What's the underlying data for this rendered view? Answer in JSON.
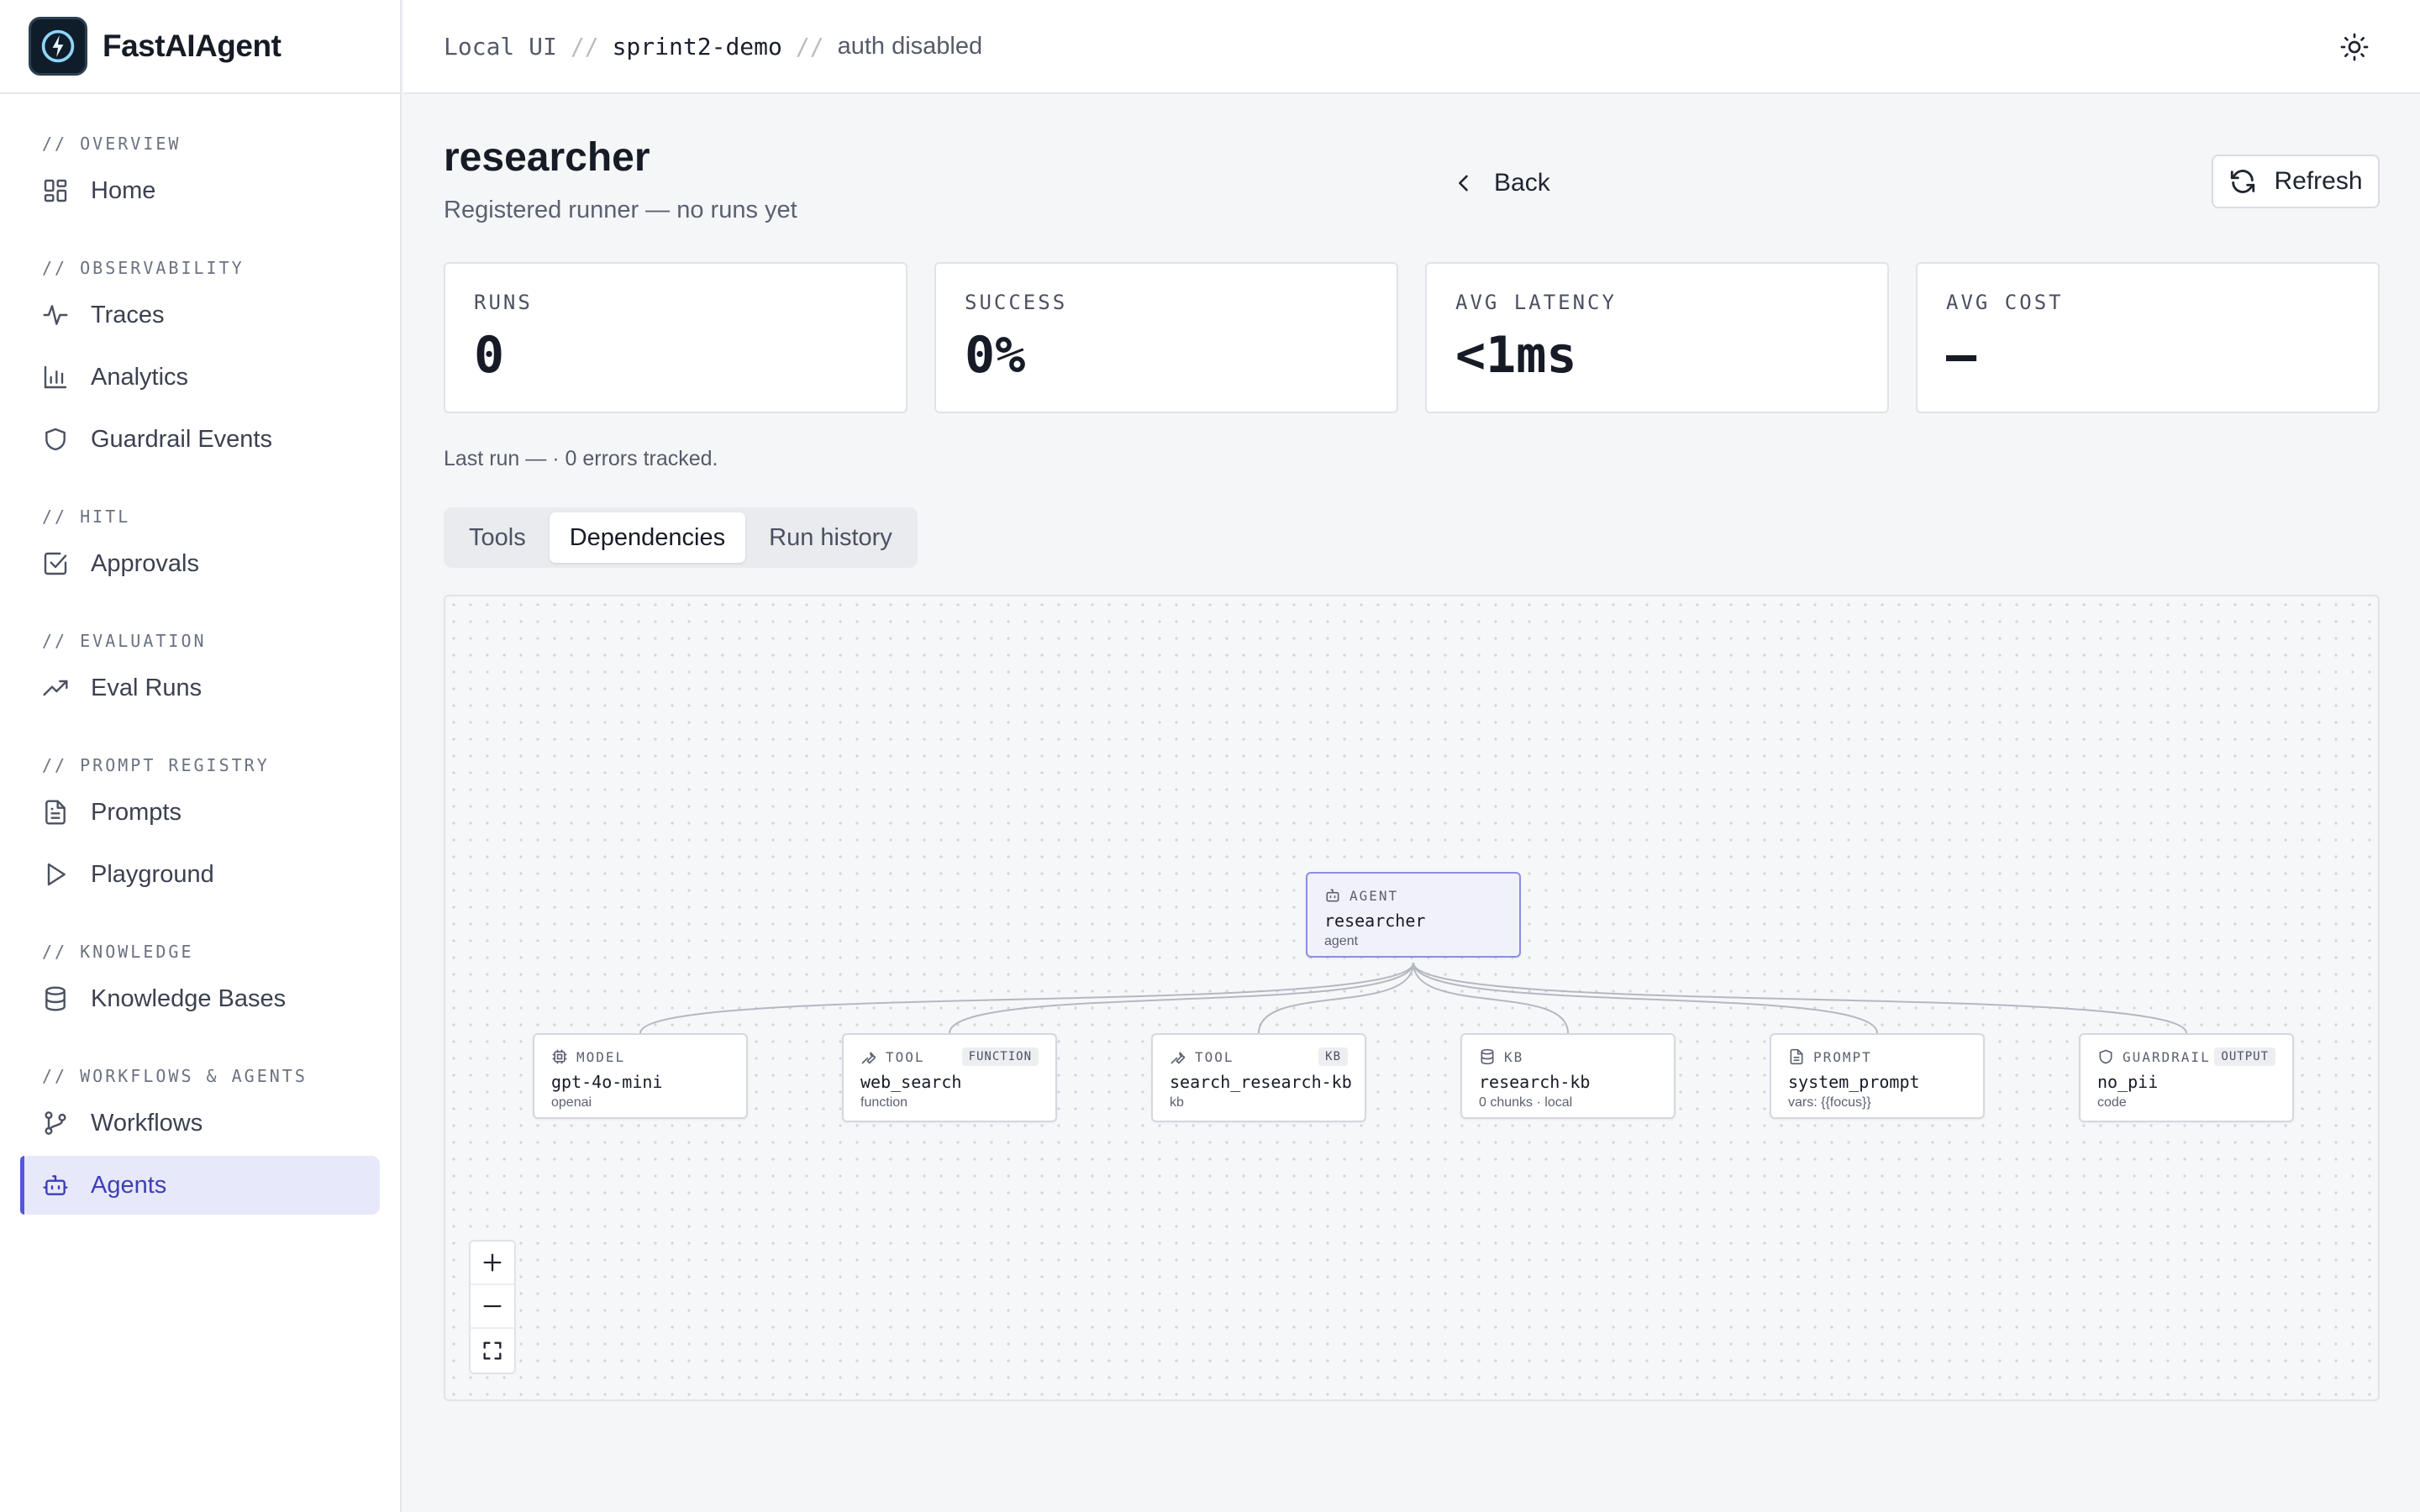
{
  "brand": {
    "name": "FastAIAgent"
  },
  "breadcrumb": {
    "root": "Local UI",
    "project": "sprint2-demo",
    "auth": "auth disabled",
    "sep": "//"
  },
  "sidebar": {
    "sections": [
      {
        "title": "// OVERVIEW",
        "items": [
          {
            "label": "Home",
            "icon": "grid-icon"
          }
        ]
      },
      {
        "title": "// OBSERVABILITY",
        "items": [
          {
            "label": "Traces",
            "icon": "activity-icon"
          },
          {
            "label": "Analytics",
            "icon": "bar-chart-icon"
          },
          {
            "label": "Guardrail Events",
            "icon": "shield-icon"
          }
        ]
      },
      {
        "title": "// HITL",
        "items": [
          {
            "label": "Approvals",
            "icon": "check-square-icon"
          }
        ]
      },
      {
        "title": "// EVALUATION",
        "items": [
          {
            "label": "Eval Runs",
            "icon": "trending-up-icon"
          }
        ]
      },
      {
        "title": "// PROMPT REGISTRY",
        "items": [
          {
            "label": "Prompts",
            "icon": "file-text-icon"
          },
          {
            "label": "Playground",
            "icon": "play-icon"
          }
        ]
      },
      {
        "title": "// KNOWLEDGE",
        "items": [
          {
            "label": "Knowledge Bases",
            "icon": "database-icon"
          }
        ]
      },
      {
        "title": "// WORKFLOWS & AGENTS",
        "items": [
          {
            "label": "Workflows",
            "icon": "git-branch-icon"
          },
          {
            "label": "Agents",
            "icon": "bot-icon",
            "active": true
          }
        ]
      }
    ]
  },
  "page": {
    "title": "researcher",
    "subtitle": "Registered runner — no runs yet",
    "back_label": "Back",
    "refresh_label": "Refresh",
    "last_run": "Last run — · 0 errors tracked."
  },
  "stats": [
    {
      "label": "RUNS",
      "value": "0"
    },
    {
      "label": "SUCCESS",
      "value": "0%"
    },
    {
      "label": "AVG LATENCY",
      "value": "<1ms"
    },
    {
      "label": "AVG COST",
      "value": "—"
    }
  ],
  "tabs": [
    {
      "label": "Tools",
      "active": false
    },
    {
      "label": "Dependencies",
      "active": true
    },
    {
      "label": "Run history",
      "active": false
    }
  ],
  "graph": {
    "root": {
      "kind": "AGENT",
      "name": "researcher",
      "sub": "agent",
      "icon": "bot-icon"
    },
    "children": [
      {
        "kind": "MODEL",
        "name": "gpt-4o-mini",
        "sub": "openai",
        "badge": "",
        "icon": "cpu-icon"
      },
      {
        "kind": "TOOL",
        "name": "web_search",
        "sub": "function",
        "badge": "FUNCTION",
        "icon": "wrench-icon"
      },
      {
        "kind": "TOOL",
        "name": "search_research-kb",
        "sub": "kb",
        "badge": "KB",
        "icon": "wrench-icon"
      },
      {
        "kind": "KB",
        "name": "research-kb",
        "sub": "0 chunks · local",
        "badge": "",
        "icon": "database-icon"
      },
      {
        "kind": "PROMPT",
        "name": "system_prompt",
        "sub": "vars: {{focus}}",
        "badge": "",
        "icon": "file-text-icon"
      },
      {
        "kind": "GUARDRAIL",
        "name": "no_pii",
        "sub": "code",
        "badge": "OUTPUT",
        "icon": "shield-icon"
      }
    ]
  },
  "zoom_controls": [
    "zoom-in-icon",
    "zoom-out-icon",
    "fit-view-icon"
  ]
}
